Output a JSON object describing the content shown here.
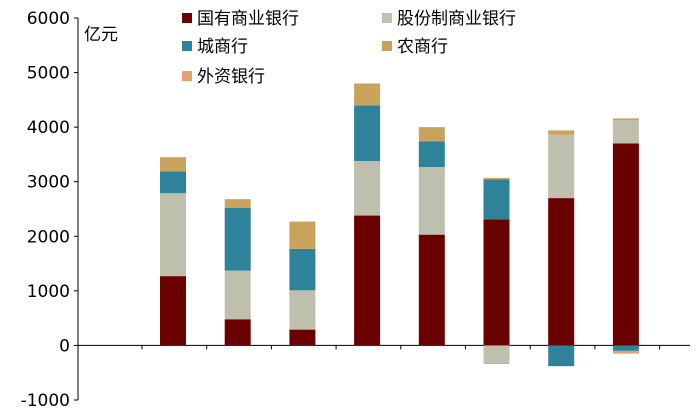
{
  "chart_data": {
    "type": "bar",
    "stacked": true,
    "ylabel": "亿元",
    "ylim": [
      -1000,
      6000
    ],
    "yticks": [
      "6000",
      "5000",
      "4000",
      "3000",
      "2000",
      "1000",
      "0",
      "-1000"
    ],
    "ytick_values": [
      6000,
      5000,
      4000,
      3000,
      2000,
      1000,
      0,
      -1000
    ],
    "bar_count": 8,
    "grid": false,
    "legend_position": "top",
    "series": [
      {
        "name": "国有商业银行",
        "color": "#6B0000",
        "values": [
          1270,
          480,
          290,
          2380,
          2030,
          2310,
          2700,
          3700
        ]
      },
      {
        "name": "股份制商业银行",
        "color": "#BFBFAE",
        "values": [
          1520,
          890,
          720,
          1000,
          1240,
          -320,
          1160,
          430
        ]
      },
      {
        "name": "城商行",
        "color": "#2E8299",
        "values": [
          400,
          1150,
          760,
          1020,
          470,
          730,
          -380,
          -100
        ]
      },
      {
        "name": "农商行",
        "color": "#C9A25C",
        "values": [
          260,
          160,
          500,
          400,
          260,
          30,
          80,
          30
        ]
      },
      {
        "name": "外资银行",
        "color": "#E8A06E",
        "values": [
          0,
          0,
          0,
          0,
          0,
          -20,
          0,
          -50
        ]
      }
    ]
  }
}
